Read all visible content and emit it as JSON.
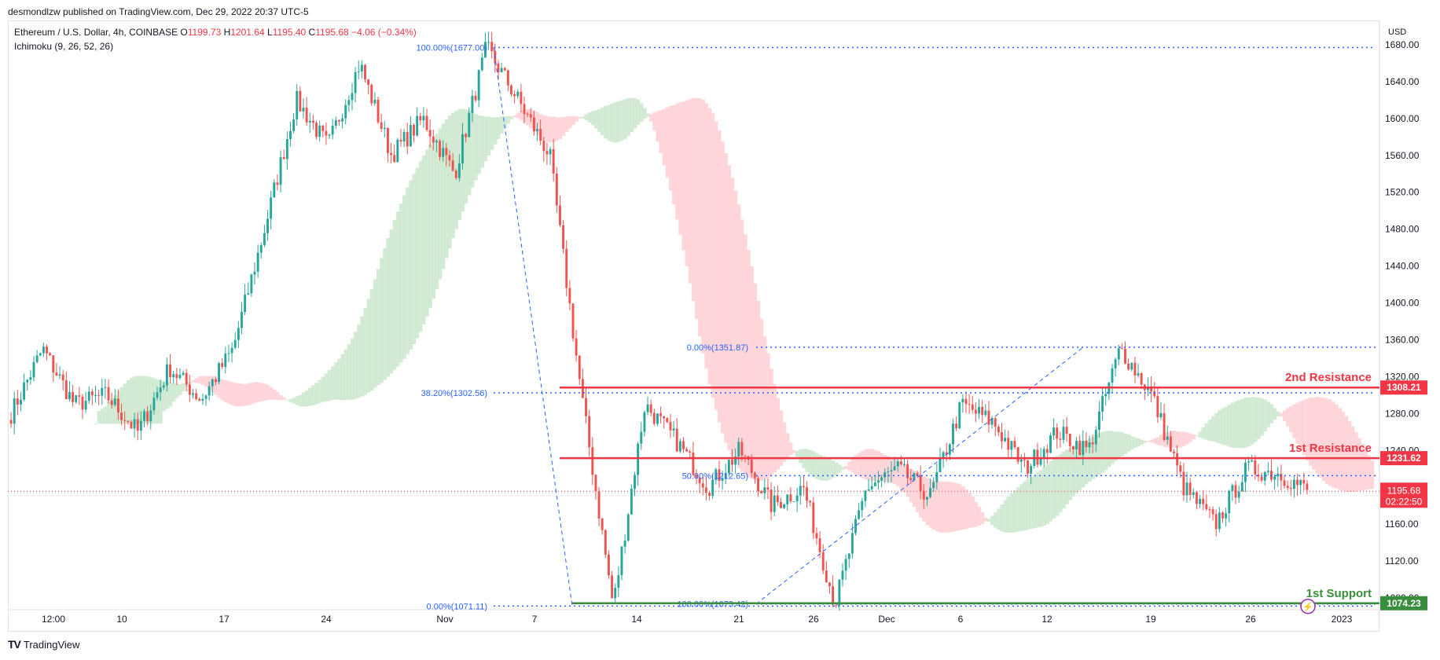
{
  "header": {
    "published_by": "desmondlzw published on TradingView.com, Dec 29, 2022 20:37 UTC-5"
  },
  "legend": {
    "symbol": "Ethereum / U.S. Dollar, 4h, COINBASE",
    "o_label": "O",
    "o_value": "1199.73",
    "h_label": "H",
    "h_value": "1201.64",
    "l_label": "L",
    "l_value": "1195.40",
    "c_label": "C",
    "c_value": "1195.68",
    "change": "−4.06 (−0.34%)",
    "indicator": "Ichimoku (9, 26, 52, 26)"
  },
  "footer": {
    "brand": "TradingView"
  },
  "chart_data": {
    "type": "candlestick",
    "symbol": "ETHUSD",
    "timeframe": "4h",
    "currency": "USD",
    "ylim": [
      1060,
      1690
    ],
    "y_ticks": [
      1080,
      1120,
      1160,
      1200,
      1240,
      1280,
      1320,
      1360,
      1400,
      1440,
      1480,
      1520,
      1560,
      1600,
      1640,
      1680
    ],
    "y_tick_labels": [
      "1080.00",
      "1120.00",
      "1160.00",
      "1200.00",
      "1240.00",
      "1280.00",
      "1320.00",
      "1360.00",
      "1400.00",
      "1440.00",
      "1480.00",
      "1520.00",
      "1560.00",
      "1600.00",
      "1640.00",
      "1680.00"
    ],
    "x_tick_labels": [
      "12:00",
      "10",
      "17",
      "24",
      "Nov",
      "7",
      "14",
      "21",
      "26",
      "Dec",
      "6",
      "12",
      "19",
      "26",
      "2023"
    ],
    "current_price": "1195.68",
    "countdown": "02:22:50",
    "colors": {
      "up": "#26a69a",
      "down": "#ef5350",
      "resistance": "#f23645",
      "support": "#388e3c",
      "fib": "#2962ff",
      "cloud_up": "#c8e6c9",
      "cloud_down": "#ffcdd2"
    },
    "levels": [
      {
        "name": "2nd Resistance",
        "value": 1308.21,
        "label": "1308.21"
      },
      {
        "name": "1st Resistance",
        "value": 1231.62,
        "label": "1231.62"
      },
      {
        "name": "1st Support",
        "value": 1074.23,
        "label": "1074.23"
      }
    ],
    "fib_labels": [
      {
        "text": "100.00%(1677.00)",
        "value": 1677.0
      },
      {
        "text": "38.20%(1302.56)",
        "value": 1302.56
      },
      {
        "text": "0.00%(1071.11)",
        "value": 1071.11
      },
      {
        "text": "0.00%(1351.87)",
        "value": 1351.87
      },
      {
        "text": "50.00%(1212.65)",
        "value": 1212.65
      },
      {
        "text": "100.00%(1073.42)",
        "value": 1073.42
      }
    ],
    "swing_points": [
      1280,
      1350,
      1290,
      1300,
      1260,
      1330,
      1295,
      1350,
      1480,
      1620,
      1570,
      1660,
      1560,
      1600,
      1540,
      1677,
      1620,
      1560,
      1300,
      1071,
      1290,
      1250,
      1200,
      1240,
      1180,
      1200,
      1073,
      1200,
      1220,
      1190,
      1290,
      1270,
      1220,
      1260,
      1240,
      1351,
      1300,
      1200,
      1160,
      1220,
      1215,
      1195
    ]
  }
}
